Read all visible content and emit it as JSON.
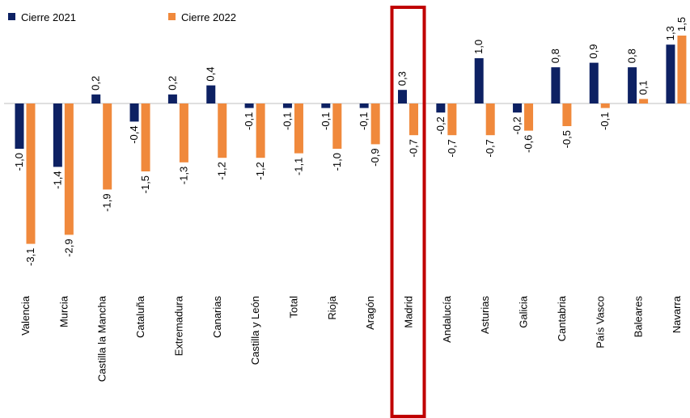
{
  "chart_data": {
    "type": "bar",
    "categories": [
      "Valencia",
      "Murcia",
      "Castilla la Mancha",
      "Cataluña",
      "Extremadura",
      "Canarias",
      "Castilla y León",
      "Total",
      "Rioja",
      "Aragón",
      "Madrid",
      "Andalucía",
      "Asturias",
      "Galicia",
      "Cantabria",
      "País Vasco",
      "Baleares",
      "Navarra"
    ],
    "series": [
      {
        "name": "Cierre 2021",
        "color": "#0d2163",
        "values": [
          -1.0,
          -1.4,
          0.2,
          -0.4,
          0.2,
          0.4,
          -0.1,
          -0.1,
          -0.1,
          -0.1,
          0.3,
          -0.2,
          1.0,
          -0.2,
          0.8,
          0.9,
          0.8,
          1.3
        ],
        "value_labels": [
          "-1,0",
          "-1,4",
          "0,2",
          "-0,4",
          "0,2",
          "0,4",
          "-0,1",
          "-0,1",
          "-0,1",
          "-0,1",
          "0,3",
          "-0,2",
          "1,0",
          "-0,2",
          "0,8",
          "0,9",
          "0,8",
          "1,3"
        ]
      },
      {
        "name": "Cierre 2022",
        "color": "#f0893c",
        "values": [
          -3.1,
          -2.9,
          -1.9,
          -1.5,
          -1.3,
          -1.2,
          -1.2,
          -1.1,
          -1.0,
          -0.9,
          -0.7,
          -0.7,
          -0.7,
          -0.6,
          -0.5,
          -0.1,
          0.1,
          1.5
        ],
        "value_labels": [
          "-3,1",
          "-2,9",
          "-1,9",
          "-1,5",
          "-1,3",
          "-1,2",
          "-1,2",
          "-1,1",
          "-1,0",
          "-0,9",
          "-0,7",
          "-0,7",
          "-0,7",
          "-0,6",
          "-0,5",
          "-0,1",
          "0,1",
          "1,5"
        ]
      }
    ],
    "highlight": "Madrid",
    "highlight_color": "#c00000"
  }
}
